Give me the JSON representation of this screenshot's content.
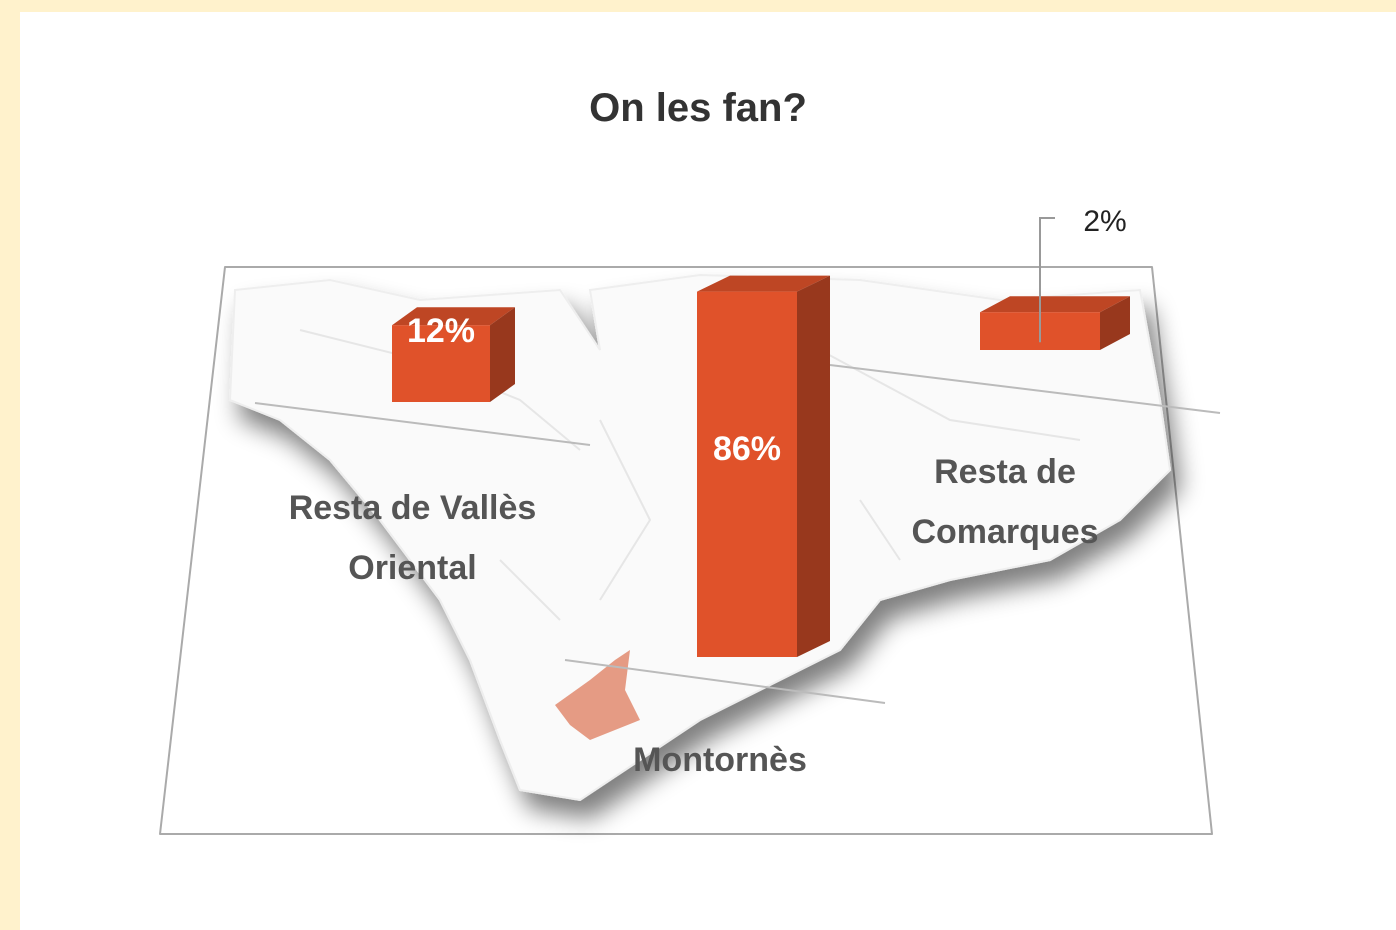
{
  "chart_data": {
    "type": "bar3d",
    "title": "On les fan?",
    "categories": [
      "Resta de Vallès Oriental",
      "Montornès",
      "Resta de Comarques"
    ],
    "values": [
      12,
      86,
      2
    ],
    "value_labels": [
      "12%",
      "86%",
      "2%"
    ],
    "color": "#e0522a"
  }
}
